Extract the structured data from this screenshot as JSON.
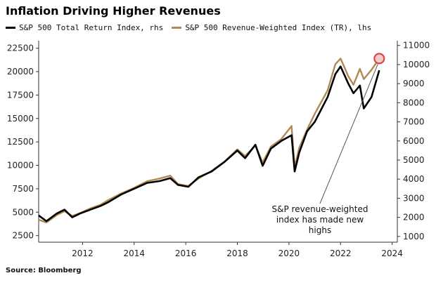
{
  "chart_data": {
    "type": "line",
    "title": "Inflation Driving Higher Revenues",
    "source": "Source: Bloomberg",
    "annotation": [
      "S&P revenue-weighted",
      "index has made new",
      "highs"
    ],
    "grid": false,
    "legend_position": "top-left",
    "x_ticks": [
      "2012",
      "2014",
      "2016",
      "2018",
      "2020",
      "2022",
      "2024"
    ],
    "x_range": [
      2010.3,
      2024.2
    ],
    "y_left": {
      "ticks": [
        "2500",
        "5000",
        "7500",
        "10000",
        "12500",
        "15000",
        "17500",
        "20000",
        "22500"
      ],
      "range": [
        1800,
        23000
      ]
    },
    "y_right": {
      "ticks": [
        "1000",
        "2000",
        "3000",
        "4000",
        "5000",
        "6000",
        "7000",
        "8000",
        "9000",
        "10000",
        "11000"
      ],
      "range": [
        700,
        11100
      ]
    },
    "colors": {
      "tr": "#000000",
      "rw": "#b08a55",
      "highlight": "#d93a3a"
    },
    "series": [
      {
        "name": "S&P 500 Total Return Index, rhs",
        "axis": "right",
        "color": "#000000",
        "x": [
          2010.3,
          2010.6,
          2011.0,
          2011.3,
          2011.6,
          2011.9,
          2012.3,
          2012.7,
          2013.0,
          2013.5,
          2014.0,
          2014.5,
          2015.0,
          2015.4,
          2015.7,
          2016.1,
          2016.5,
          2017.0,
          2017.5,
          2018.0,
          2018.3,
          2018.7,
          2018.98,
          2019.3,
          2019.7,
          2020.1,
          2020.22,
          2020.4,
          2020.7,
          2021.0,
          2021.5,
          2021.8,
          2022.0,
          2022.3,
          2022.5,
          2022.75,
          2022.9,
          2023.2,
          2023.5
        ],
        "values": [
          2100,
          1800,
          2200,
          2400,
          2000,
          2200,
          2400,
          2600,
          2800,
          3200,
          3500,
          3800,
          3900,
          4050,
          3700,
          3600,
          4100,
          4400,
          4900,
          5500,
          5100,
          5800,
          4700,
          5600,
          6000,
          6300,
          4400,
          5400,
          6500,
          7000,
          8300,
          9500,
          9900,
          9000,
          8500,
          8900,
          7700,
          8300,
          9700
        ]
      },
      {
        "name": "S&P 500 Revenue-Weighted Index (TR), lhs",
        "axis": "left",
        "color": "#b08a55",
        "x": [
          2010.3,
          2010.6,
          2011.0,
          2011.3,
          2011.6,
          2011.9,
          2012.3,
          2012.7,
          2013.0,
          2013.5,
          2014.0,
          2014.5,
          2015.0,
          2015.4,
          2015.7,
          2016.1,
          2016.5,
          2017.0,
          2017.5,
          2018.0,
          2018.3,
          2018.7,
          2018.98,
          2019.3,
          2019.7,
          2020.1,
          2020.22,
          2020.4,
          2020.7,
          2021.0,
          2021.5,
          2021.8,
          2022.0,
          2022.3,
          2022.5,
          2022.75,
          2022.9,
          2023.2,
          2023.5
        ],
        "values": [
          4200,
          3900,
          4700,
          5100,
          4600,
          4900,
          5400,
          5800,
          6300,
          7000,
          7600,
          8300,
          8600,
          8900,
          8000,
          7800,
          8600,
          9400,
          10400,
          11700,
          11000,
          12100,
          10300,
          12000,
          12800,
          14200,
          9800,
          11900,
          13800,
          15500,
          18000,
          20800,
          21400,
          19500,
          18600,
          20300,
          19200,
          20200,
          21400
        ]
      }
    ],
    "highlight_point": {
      "x": 2023.5,
      "y": 21400,
      "axis": "left"
    }
  }
}
